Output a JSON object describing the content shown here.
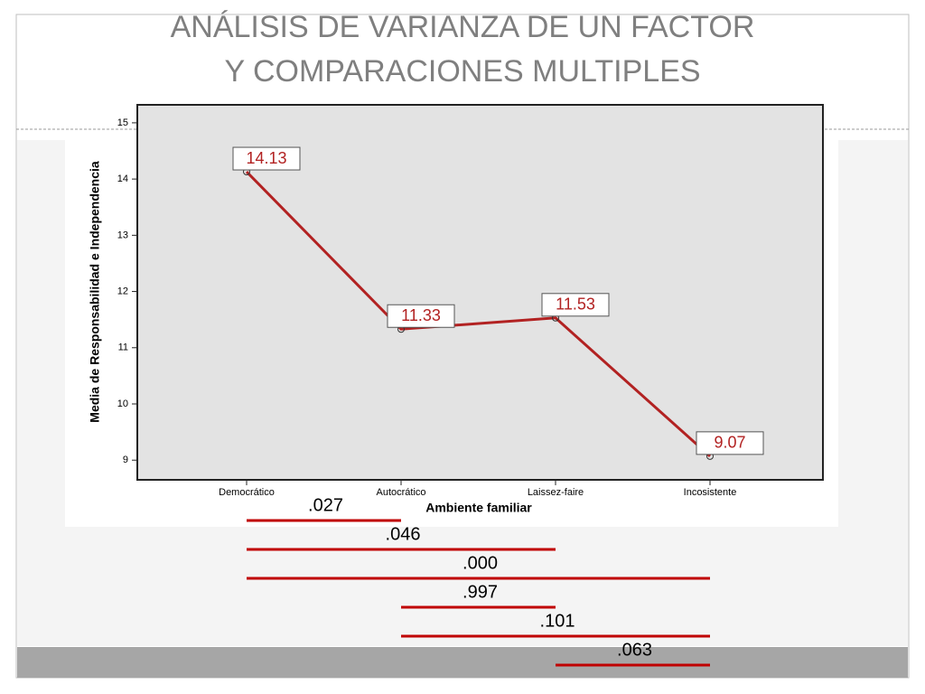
{
  "title": [
    "ANÁLISIS DE VARIANZA DE UN FACTOR",
    "Y COMPARACIONES MULTIPLES"
  ],
  "chart_data": {
    "type": "line",
    "y_label": "Media de Responsabilidad e Independencia",
    "x_label": "Ambiente familiar",
    "categories": [
      "Democrático",
      "Autocrático",
      "Laissez-faire",
      "Incosistente"
    ],
    "values": [
      14.13,
      11.33,
      11.53,
      9.07
    ],
    "color": "#b22222",
    "ylim": [
      8.65,
      15.32
    ],
    "yticks": [
      9,
      10,
      11,
      12,
      13,
      14,
      15
    ]
  },
  "comparisons": [
    ".027",
    ".046",
    ".000",
    ".997",
    ".101",
    ".063"
  ]
}
